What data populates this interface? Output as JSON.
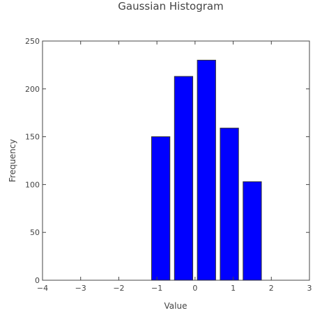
{
  "chart_data": {
    "type": "bar",
    "title": "Gaussian Histogram",
    "xlabel": "Value",
    "ylabel": "Frequency",
    "xlim": [
      -4,
      3
    ],
    "ylim": [
      0,
      250
    ],
    "x_ticks": [
      -4,
      -3,
      -2,
      -1,
      0,
      1,
      2,
      3
    ],
    "x_tick_labels": [
      "−4",
      "−3",
      "−2",
      "−1",
      "0",
      "1",
      "2",
      "3"
    ],
    "y_ticks": [
      0,
      50,
      100,
      150,
      200,
      250
    ],
    "y_tick_labels": [
      "0",
      "50",
      "100",
      "150",
      "200",
      "250"
    ],
    "bin_width": 0.6,
    "bar_width": 0.48,
    "bins": [
      {
        "center": -0.9,
        "value": 150
      },
      {
        "center": -0.3,
        "value": 213
      },
      {
        "center": 0.3,
        "value": 230
      },
      {
        "center": 0.9,
        "value": 159
      },
      {
        "center": 1.5,
        "value": 103
      }
    ],
    "colors": {
      "bar_fill": "#0000ff",
      "bar_stroke": "#333333",
      "axis": "#444444",
      "text": "#444444",
      "title": "#444444"
    },
    "grid": false,
    "box": true
  }
}
